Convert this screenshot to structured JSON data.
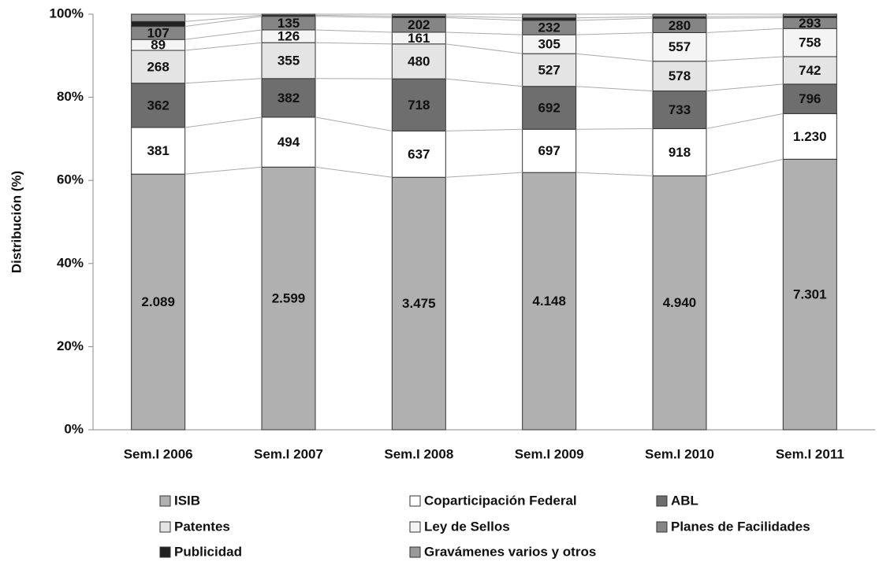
{
  "chart_data": {
    "type": "bar",
    "stacking": "percent",
    "y_label": "Distribución (%)",
    "categories": [
      "Sem.I 2006",
      "Sem.I 2007",
      "Sem.I 2008",
      "Sem.I 2009",
      "Sem.I 2010",
      "Sem.I 2011"
    ],
    "series": [
      {
        "name": "ISIB",
        "color": "#b0b0b0",
        "values": [
          2089,
          2599,
          3475,
          4148,
          4940,
          7301
        ],
        "value_labels": [
          "2.089",
          "2.599",
          "3.475",
          "4.148",
          "4.940",
          "7.301"
        ]
      },
      {
        "name": "Coparticipación Federal",
        "color": "#ffffff",
        "values": [
          381,
          494,
          637,
          697,
          918,
          1230
        ],
        "value_labels": [
          "381",
          "494",
          "637",
          "697",
          "918",
          "1.230"
        ]
      },
      {
        "name": "ABL",
        "color": "#6e6e6e",
        "values": [
          362,
          382,
          718,
          692,
          733,
          796
        ]
      },
      {
        "name": "Patentes",
        "color": "#e4e4e4",
        "values": [
          268,
          355,
          480,
          527,
          578,
          742
        ]
      },
      {
        "name": "Ley de Sellos",
        "color": "#f4f4f4",
        "values": [
          89,
          126,
          161,
          305,
          557,
          758
        ]
      },
      {
        "name": "Planes de Facilidades",
        "color": "#858585",
        "values": [
          107,
          135,
          202,
          232,
          280,
          293
        ]
      },
      {
        "name": "Publicidad",
        "color": "#222222",
        "values": [
          40,
          10,
          20,
          40,
          30,
          40
        ],
        "value_labels": [
          null,
          null,
          null,
          null,
          null,
          null
        ]
      },
      {
        "name": "Gravámenes varios y otros",
        "color": "#9a9a9a",
        "values": [
          60,
          11,
          27,
          60,
          49,
          55
        ],
        "value_labels": [
          null,
          null,
          null,
          null,
          null,
          null
        ]
      }
    ],
    "ylim": [
      0,
      100
    ],
    "yticks": [
      {
        "value": 0,
        "label": "0%"
      },
      {
        "value": 20,
        "label": "20%"
      },
      {
        "value": 40,
        "label": "40%"
      },
      {
        "value": 60,
        "label": "60%"
      },
      {
        "value": 80,
        "label": "80%"
      },
      {
        "value": 100,
        "label": "100%"
      }
    ],
    "legend": "bottom"
  }
}
